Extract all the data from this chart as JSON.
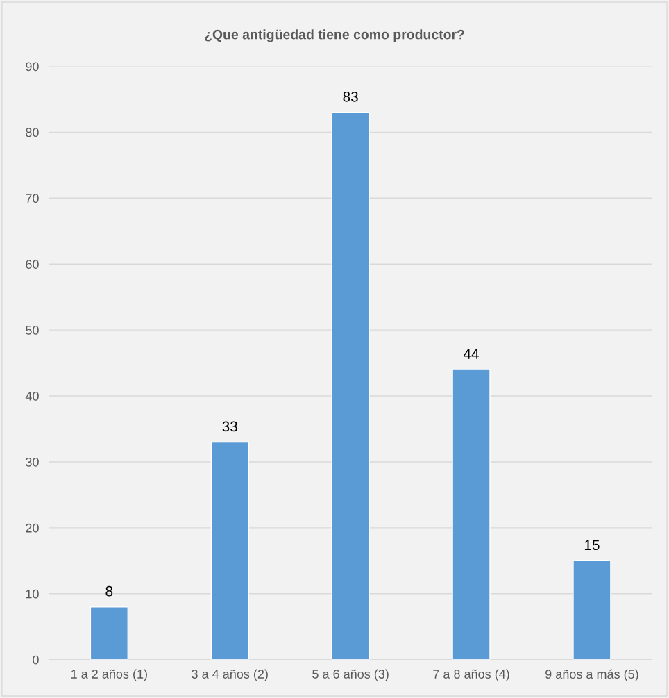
{
  "chart_data": {
    "type": "bar",
    "title": "¿Que antigüedad tiene como productor?",
    "categories": [
      "1 a 2 años (1)",
      "3 a 4 años (2)",
      "5 a 6 años (3)",
      "7 a 8 años (4)",
      "9 años a más (5)"
    ],
    "values": [
      8,
      33,
      83,
      44,
      15
    ],
    "color": "#5b9bd5",
    "ylim": [
      0,
      90
    ],
    "yticks": [
      0,
      10,
      20,
      30,
      40,
      50,
      60,
      70,
      80,
      90
    ],
    "grid": "y",
    "data_labels": true,
    "legend": false
  }
}
